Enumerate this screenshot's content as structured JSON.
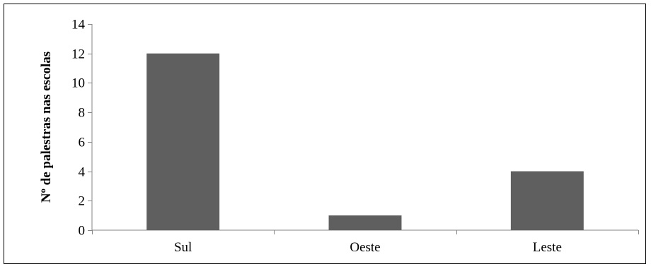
{
  "chart_data": {
    "type": "bar",
    "categories": [
      "Sul",
      "Oeste",
      "Leste"
    ],
    "values": [
      12,
      1,
      4
    ],
    "title": "",
    "xlabel": "",
    "ylabel": "Nº de palestras nas escolas",
    "ylim": [
      0,
      14
    ],
    "yticks": [
      0,
      2,
      4,
      6,
      8,
      10,
      12,
      14
    ],
    "grid": false,
    "legend": "none",
    "colors": {
      "bar": "#5f5f5f",
      "axis": "#868686",
      "frame": "#000000",
      "text": "#000000"
    }
  }
}
